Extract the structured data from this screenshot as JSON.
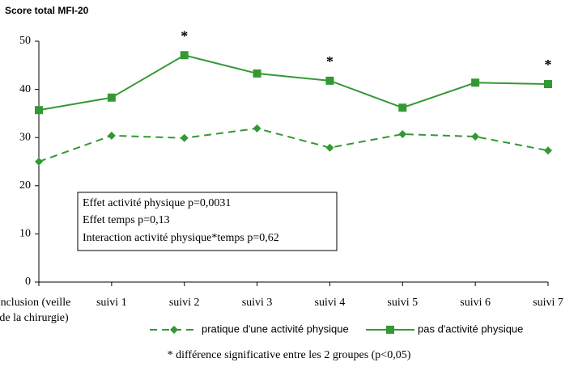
{
  "chart_data": {
    "type": "line",
    "title": "Score total MFI-20",
    "categories": [
      "inclusion (veille de la chirurgie)",
      "suivi 1",
      "suivi 2",
      "suivi 3",
      "suivi 4",
      "suivi 5",
      "suivi 6",
      "suivi 7"
    ],
    "series": [
      {
        "name": "pratique d'une activité physique",
        "color": "#339933",
        "line_style": "dashed",
        "marker": "diamond",
        "values": [
          25.0,
          30.4,
          29.9,
          31.9,
          27.9,
          30.7,
          30.2,
          27.3
        ]
      },
      {
        "name": "pas d'activité physique",
        "color": "#339933",
        "line_style": "solid",
        "marker": "square",
        "values": [
          35.7,
          38.3,
          47.1,
          43.3,
          41.8,
          36.2,
          41.4,
          41.1
        ]
      }
    ],
    "ylim": [
      0,
      50
    ],
    "yticks": [
      0,
      10,
      20,
      30,
      40,
      50
    ],
    "annotations": [
      {
        "text": "*",
        "x": "suivi 2"
      },
      {
        "text": "*",
        "x": "suivi 4"
      },
      {
        "text": "*",
        "x": "suivi 7"
      }
    ],
    "stats_box": [
      "Effet activité physique p=0,0031",
      "Effet temps p=0,13",
      "Interaction activité physique*temps p=0,62"
    ],
    "legend": "bottom",
    "note": "*  différence significative entre les 2 groupes (p<0,05)"
  }
}
